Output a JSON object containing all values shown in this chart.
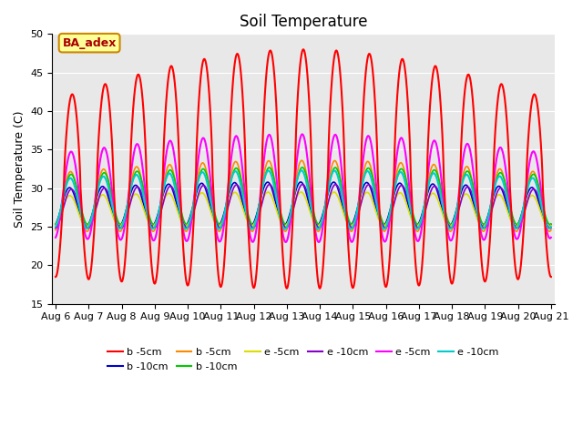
{
  "title": "Soil Temperature",
  "ylabel": "Soil Temperature (C)",
  "ylim": [
    15,
    50
  ],
  "x_tick_labels": [
    "Aug 6",
    "Aug 7",
    "Aug 8",
    "Aug 9",
    "Aug 10",
    "Aug 11",
    "Aug 12",
    "Aug 13",
    "Aug 14",
    "Aug 15",
    "Aug 16",
    "Aug 17",
    "Aug 18",
    "Aug 19",
    "Aug 20",
    "Aug 21"
  ],
  "yticks": [
    15,
    20,
    25,
    30,
    35,
    40,
    45,
    50
  ],
  "series": [
    {
      "label": "b -5cm",
      "color": "#ff0000",
      "lw": 1.5,
      "zorder": 5
    },
    {
      "label": "b -10cm",
      "color": "#0000cc",
      "lw": 1.2,
      "zorder": 4
    },
    {
      "label": "b -5cm",
      "color": "#ff8800",
      "lw": 1.2,
      "zorder": 4
    },
    {
      "label": "b -10cm",
      "color": "#00cc00",
      "lw": 1.2,
      "zorder": 4
    },
    {
      "label": "e -5cm",
      "color": "#dddd00",
      "lw": 1.2,
      "zorder": 4
    },
    {
      "label": "e -10cm",
      "color": "#8800cc",
      "lw": 1.2,
      "zorder": 4
    },
    {
      "label": "e -5cm",
      "color": "#ff00ff",
      "lw": 1.5,
      "zorder": 4
    },
    {
      "label": "e -10cm",
      "color": "#00cccc",
      "lw": 1.5,
      "zorder": 4
    }
  ],
  "annotation_text": "BA_adex",
  "annotation_color": "#aa0000",
  "annotation_bg": "#ffff99",
  "annotation_border": "#cc8800",
  "bg_color": "#e8e8e8",
  "title_fontsize": 12,
  "label_fontsize": 9,
  "tick_fontsize": 8,
  "legend_fontsize": 8
}
